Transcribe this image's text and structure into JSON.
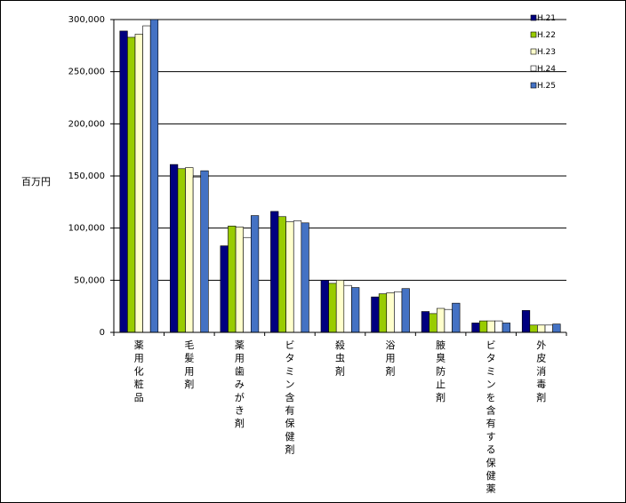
{
  "chart_data": {
    "type": "bar",
    "ylabel": "百万円",
    "ylim": [
      0,
      300000
    ],
    "ytick_labels": [
      "0",
      "50,000",
      "100,000",
      "150,000",
      "200,000",
      "250,000",
      "300,000"
    ],
    "grid": true,
    "legend_position": "top-right",
    "categories": [
      "薬用化粧品",
      "毛髪用剤",
      "薬用歯みがき剤",
      "ビタミン含有保健剤",
      "殺虫剤",
      "浴用剤",
      "腋臭防止剤",
      "ビタミンを含有する保健薬",
      "外皮消毒剤"
    ],
    "series": [
      {
        "name": "H.21",
        "color": "#000080",
        "values": [
          289000,
          161000,
          83000,
          116000,
          50000,
          34000,
          20000,
          9000,
          21000
        ]
      },
      {
        "name": "H.22",
        "color": "#99CC00",
        "values": [
          283000,
          157000,
          102000,
          111000,
          47000,
          37000,
          18000,
          11000,
          7000
        ]
      },
      {
        "name": "H.23",
        "color": "#FFFFCC",
        "values": [
          286000,
          158000,
          101000,
          106000,
          50000,
          38000,
          23000,
          11000,
          7000
        ]
      },
      {
        "name": "H.24",
        "color": "#FFFFFF",
        "values": [
          294000,
          149000,
          91000,
          107000,
          45000,
          39000,
          22000,
          11000,
          7000
        ]
      },
      {
        "name": "H.25",
        "color": "#4472C4",
        "values": [
          300000,
          155000,
          112000,
          105000,
          43000,
          42000,
          28000,
          9000,
          8000
        ]
      }
    ]
  }
}
